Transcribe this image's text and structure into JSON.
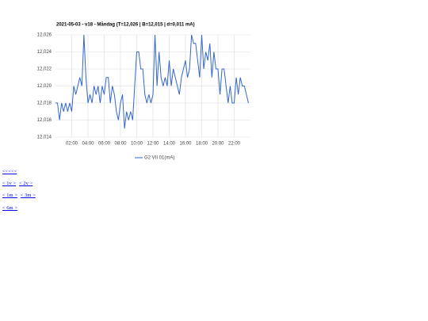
{
  "chart_data": {
    "type": "line",
    "title": "2021-05-03 - v18 - Måndag (T=12,026 | B=12,015 | d=0,011 mA)",
    "x": [
      0,
      0.25,
      0.5,
      0.75,
      1,
      1.25,
      1.5,
      1.75,
      2,
      2.25,
      2.5,
      2.75,
      3,
      3.25,
      3.5,
      3.75,
      4,
      4.25,
      4.5,
      4.75,
      5,
      5.25,
      5.5,
      5.75,
      6,
      6.25,
      6.5,
      6.75,
      7,
      7.25,
      7.5,
      7.75,
      8,
      8.25,
      8.5,
      8.75,
      9,
      9.25,
      9.5,
      9.75,
      10,
      10.25,
      10.5,
      10.75,
      11,
      11.25,
      11.5,
      11.75,
      12,
      12.25,
      12.5,
      12.75,
      13,
      13.25,
      13.5,
      13.75,
      14,
      14.25,
      14.5,
      14.75,
      15,
      15.25,
      15.5,
      15.75,
      16,
      16.25,
      16.5,
      16.75,
      17,
      17.25,
      17.5,
      17.75,
      18,
      18.25,
      18.5,
      18.75,
      19,
      19.25,
      19.5,
      19.75,
      20,
      20.25,
      20.5,
      20.75,
      21,
      21.25,
      21.5,
      21.75,
      22,
      22.25,
      22.5,
      22.75,
      23,
      23.25,
      23.5,
      23.75
    ],
    "series": [
      {
        "name": "G2 VII 01(mA)",
        "color": "#3366cc",
        "values": [
          12.018,
          12.018,
          12.016,
          12.018,
          12.017,
          12.018,
          12.017,
          12.018,
          12.017,
          12.02,
          12.019,
          12.02,
          12.021,
          12.02,
          12.026,
          12.021,
          12.018,
          12.019,
          12.018,
          12.02,
          12.019,
          12.02,
          12.018,
          12.02,
          12.019,
          12.021,
          12.021,
          12.018,
          12.02,
          12.019,
          12.017,
          12.016,
          12.018,
          12.019,
          12.015,
          12.017,
          12.016,
          12.017,
          12.016,
          12.02,
          12.024,
          12.024,
          12.022,
          12.022,
          12.019,
          12.018,
          12.019,
          12.018,
          12.019,
          12.026,
          12.02,
          12.024,
          12.021,
          12.02,
          12.021,
          12.02,
          12.023,
          12.02,
          12.022,
          12.021,
          12.02,
          12.019,
          12.021,
          12.022,
          12.023,
          12.021,
          12.022,
          12.026,
          12.025,
          12.025,
          12.023,
          12.021,
          12.026,
          12.022,
          12.024,
          12.023,
          12.025,
          12.021,
          12.024,
          12.022,
          12.022,
          12.019,
          12.022,
          12.022,
          12.02,
          12.018,
          12.02,
          12.018,
          12.018,
          12.021,
          12.019,
          12.021,
          12.02,
          12.02,
          12.019,
          12.018
        ]
      }
    ],
    "xlim": [
      0,
      24
    ],
    "xticks": [
      {
        "value": 2,
        "label": "02:00"
      },
      {
        "value": 4,
        "label": "04:00"
      },
      {
        "value": 6,
        "label": "06:00"
      },
      {
        "value": 8,
        "label": "08:00"
      },
      {
        "value": 10,
        "label": "10:00"
      },
      {
        "value": 12,
        "label": "12:00"
      },
      {
        "value": 14,
        "label": "14:00"
      },
      {
        "value": 16,
        "label": "16:00"
      },
      {
        "value": 18,
        "label": "18:00"
      },
      {
        "value": 20,
        "label": "20:00"
      },
      {
        "value": 22,
        "label": "22:00"
      }
    ],
    "ylim": [
      12.014,
      12.026
    ],
    "yticks": [
      {
        "value": 12.014,
        "label": "12,014"
      },
      {
        "value": 12.016,
        "label": "12,016"
      },
      {
        "value": 12.018,
        "label": "12,018"
      },
      {
        "value": 12.02,
        "label": "12,020"
      },
      {
        "value": 12.022,
        "label": "12,022"
      },
      {
        "value": 12.024,
        "label": "12,024"
      },
      {
        "value": 12.026,
        "label": "12,026"
      }
    ],
    "grid": true,
    "legend": "bottom"
  },
  "links": [
    [
      "<<<<<"
    ],
    [
      "< 1v >",
      "< 2v >"
    ],
    [
      "< 1m >",
      "< 3m >"
    ],
    [
      "< 6m >"
    ]
  ]
}
